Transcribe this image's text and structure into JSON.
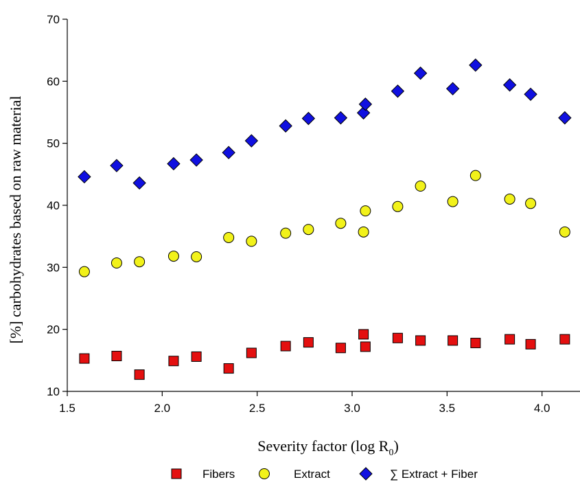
{
  "chart_data": {
    "type": "scatter",
    "title": "",
    "xlabel": "Severity factor (log R",
    "xlabel_sub": "0",
    "xlabel_close": ")",
    "ylabel": "[%] carbohydrates based on raw material",
    "xlim": [
      1.5,
      4.2
    ],
    "ylim": [
      10,
      70
    ],
    "xticks": [
      "1.5",
      "2.0",
      "2.5",
      "3.0",
      "3.5",
      "4.0"
    ],
    "yticks": [
      "10",
      "20",
      "30",
      "40",
      "50",
      "60",
      "70"
    ],
    "grid": false,
    "legend_position": "bottom",
    "series": [
      {
        "name": "Fibers",
        "marker": "square",
        "color": "#e41010",
        "points": [
          [
            1.59,
            15.3
          ],
          [
            1.76,
            15.7
          ],
          [
            1.88,
            12.7
          ],
          [
            2.06,
            14.9
          ],
          [
            2.18,
            15.6
          ],
          [
            2.35,
            13.7
          ],
          [
            2.47,
            16.2
          ],
          [
            2.65,
            17.3
          ],
          [
            2.77,
            17.9
          ],
          [
            2.94,
            17.0
          ],
          [
            3.06,
            19.2
          ],
          [
            3.07,
            17.2
          ],
          [
            3.24,
            18.6
          ],
          [
            3.36,
            18.2
          ],
          [
            3.53,
            18.2
          ],
          [
            3.65,
            17.8
          ],
          [
            3.83,
            18.4
          ],
          [
            3.94,
            17.6
          ],
          [
            4.12,
            18.4
          ]
        ]
      },
      {
        "name": "Extract",
        "marker": "circle",
        "color": "#f2f21a",
        "points": [
          [
            1.59,
            29.3
          ],
          [
            1.76,
            30.7
          ],
          [
            1.88,
            30.9
          ],
          [
            2.06,
            31.8
          ],
          [
            2.18,
            31.7
          ],
          [
            2.35,
            34.8
          ],
          [
            2.47,
            34.2
          ],
          [
            2.65,
            35.5
          ],
          [
            2.77,
            36.1
          ],
          [
            2.94,
            37.1
          ],
          [
            3.06,
            35.7
          ],
          [
            3.07,
            39.1
          ],
          [
            3.24,
            39.8
          ],
          [
            3.36,
            43.1
          ],
          [
            3.53,
            40.6
          ],
          [
            3.65,
            44.8
          ],
          [
            3.83,
            41.0
          ],
          [
            3.94,
            40.3
          ],
          [
            4.12,
            35.7
          ]
        ]
      },
      {
        "name": "∑ Extract + Fiber",
        "marker": "diamond",
        "color": "#1010e0",
        "points": [
          [
            1.59,
            44.6
          ],
          [
            1.76,
            46.4
          ],
          [
            1.88,
            43.6
          ],
          [
            2.06,
            46.7
          ],
          [
            2.18,
            47.3
          ],
          [
            2.35,
            48.5
          ],
          [
            2.47,
            50.4
          ],
          [
            2.65,
            52.8
          ],
          [
            2.77,
            54.0
          ],
          [
            2.94,
            54.1
          ],
          [
            3.06,
            54.9
          ],
          [
            3.07,
            56.3
          ],
          [
            3.24,
            58.4
          ],
          [
            3.36,
            61.3
          ],
          [
            3.53,
            58.8
          ],
          [
            3.65,
            62.6
          ],
          [
            3.83,
            59.4
          ],
          [
            3.94,
            57.9
          ],
          [
            4.12,
            54.1
          ]
        ]
      }
    ]
  }
}
